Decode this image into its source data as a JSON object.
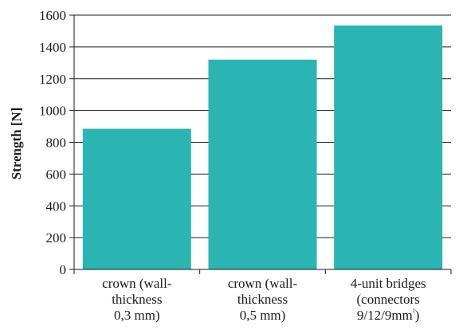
{
  "chart_data": {
    "type": "bar",
    "categories": [
      [
        "crown (wall-",
        "thickness",
        "0,3 mm)"
      ],
      [
        "crown (wall-",
        "thickness",
        "0,5 mm)"
      ],
      [
        "4-unit bridges",
        "(connectors",
        "9/12/9mm²)"
      ]
    ],
    "values": [
      885,
      1320,
      1535
    ],
    "ylabel": "Strength [N]",
    "ylim": [
      0,
      1600
    ],
    "yticks": [
      0,
      200,
      400,
      600,
      800,
      1000,
      1200,
      1400,
      1600
    ],
    "grid": true,
    "bar_color": "#2ab5b3",
    "axis_color": "#1a1a1a"
  }
}
